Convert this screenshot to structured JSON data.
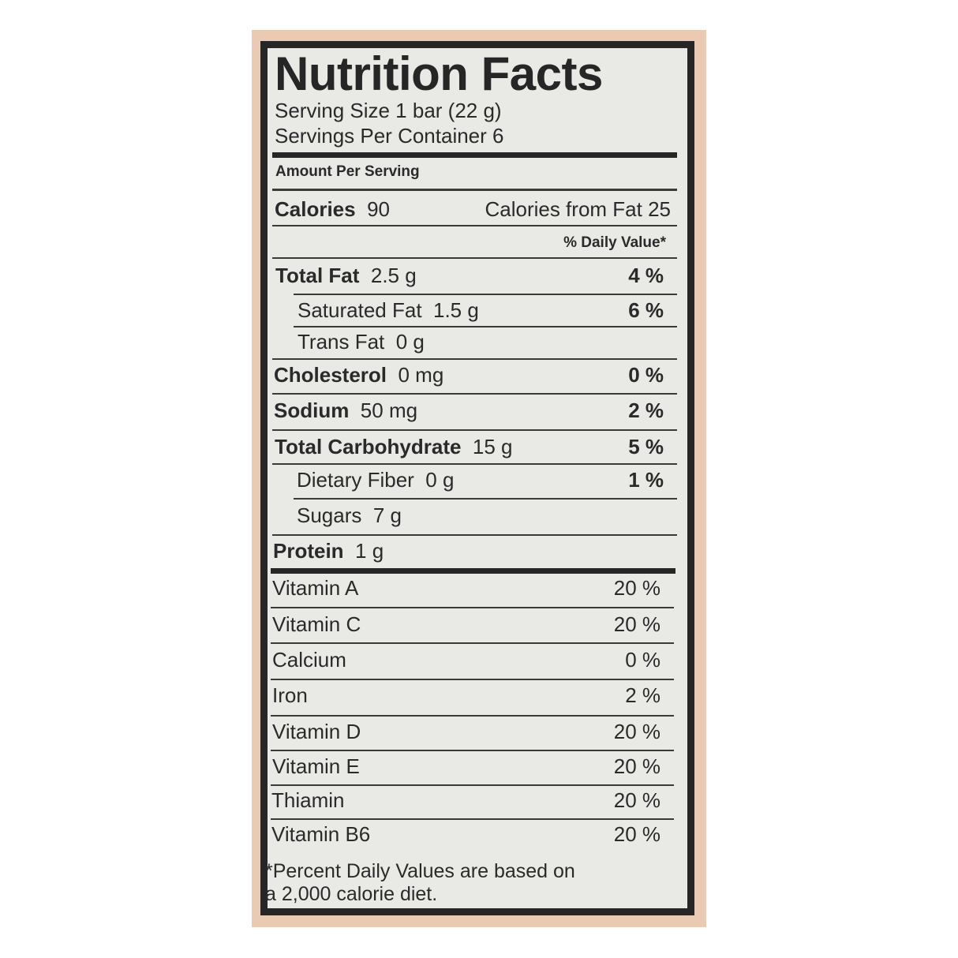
{
  "label": {
    "title": "Nutrition Facts",
    "serving_size": "Serving Size 1 bar (22 g)",
    "servings_per_container": "Servings Per Container 6",
    "amount_per_serving": "Amount Per Serving",
    "calories_label": "Calories",
    "calories_value": "90",
    "calories_from_fat": "Calories from Fat 25",
    "daily_value_header": "% Daily Value*",
    "nutrients": [
      {
        "name": "Total Fat",
        "amount": "2.5 g",
        "dv": "4 %"
      },
      {
        "name": "Saturated Fat",
        "amount": "1.5 g",
        "dv": "6 %"
      },
      {
        "name": "Trans Fat",
        "amount": "0 g",
        "dv": ""
      },
      {
        "name": "Cholesterol",
        "amount": "0 mg",
        "dv": "0 %"
      },
      {
        "name": "Sodium",
        "amount": "50 mg",
        "dv": "2 %"
      },
      {
        "name": "Total Carbohydrate",
        "amount": "15 g",
        "dv": "5 %"
      },
      {
        "name": "Dietary Fiber",
        "amount": "0 g",
        "dv": "1 %"
      },
      {
        "name": "Sugars",
        "amount": "7 g",
        "dv": ""
      },
      {
        "name": "Protein",
        "amount": "1 g",
        "dv": ""
      }
    ],
    "vitamins": [
      {
        "name": "Vitamin A",
        "dv": "20 %"
      },
      {
        "name": "Vitamin C",
        "dv": "20 %"
      },
      {
        "name": "Calcium",
        "dv": "0 %"
      },
      {
        "name": "Iron",
        "dv": "2 %"
      },
      {
        "name": "Vitamin D",
        "dv": "20 %"
      },
      {
        "name": "Vitamin E",
        "dv": "20 %"
      },
      {
        "name": "Thiamin",
        "dv": "20 %"
      },
      {
        "name": "Vitamin B6",
        "dv": "20 %"
      }
    ],
    "footnote_line1": "*Percent Daily Values are based on",
    "footnote_line2": "a 2,000 calorie diet."
  },
  "colors": {
    "background": "#ebcab4",
    "panel": "#e9e9e6",
    "ink": "#262626"
  }
}
